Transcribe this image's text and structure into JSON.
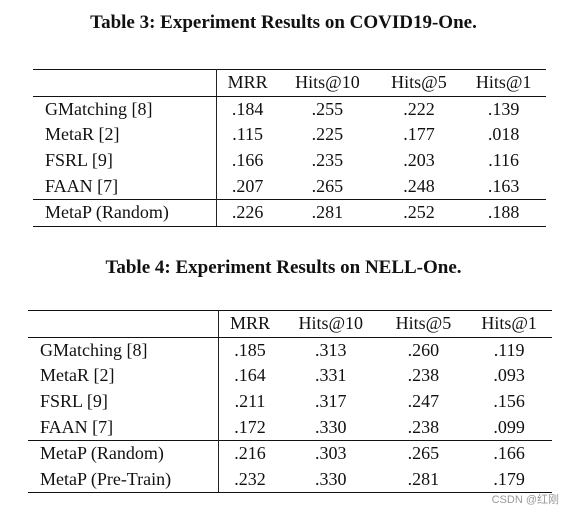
{
  "table3": {
    "caption": "Table 3: Experiment Results on COVID19-One.",
    "columns": [
      "MRR",
      "Hits@10",
      "Hits@5",
      "Hits@1"
    ],
    "rows": [
      {
        "name": "GMatching [8]",
        "values": [
          ".184",
          ".255",
          ".222",
          ".139"
        ]
      },
      {
        "name": "MetaR [2]",
        "values": [
          ".115",
          ".225",
          ".177",
          ".018"
        ]
      },
      {
        "name": "FSRL [9]",
        "values": [
          ".166",
          ".235",
          ".203",
          ".116"
        ]
      },
      {
        "name": "FAAN [7]",
        "values": [
          ".207",
          ".265",
          ".248",
          ".163"
        ]
      },
      {
        "name": "MetaP (Random)",
        "values": [
          ".226",
          ".281",
          ".252",
          ".188"
        ]
      }
    ]
  },
  "table4": {
    "caption": "Table 4: Experiment Results on NELL-One.",
    "columns": [
      "MRR",
      "Hits@10",
      "Hits@5",
      "Hits@1"
    ],
    "rows": [
      {
        "name": "GMatching [8]",
        "values": [
          ".185",
          ".313",
          ".260",
          ".119"
        ]
      },
      {
        "name": "MetaR [2]",
        "values": [
          ".164",
          ".331",
          ".238",
          ".093"
        ]
      },
      {
        "name": "FSRL [9]",
        "values": [
          ".211",
          ".317",
          ".247",
          ".156"
        ]
      },
      {
        "name": "FAAN [7]",
        "values": [
          ".172",
          ".330",
          ".238",
          ".099"
        ]
      },
      {
        "name": "MetaP (Random)",
        "values": [
          ".216",
          ".303",
          ".265",
          ".166"
        ]
      },
      {
        "name": "MetaP (Pre-Train)",
        "values": [
          ".232",
          ".330",
          ".281",
          ".179"
        ]
      }
    ]
  },
  "watermark": "CSDN @红刚"
}
